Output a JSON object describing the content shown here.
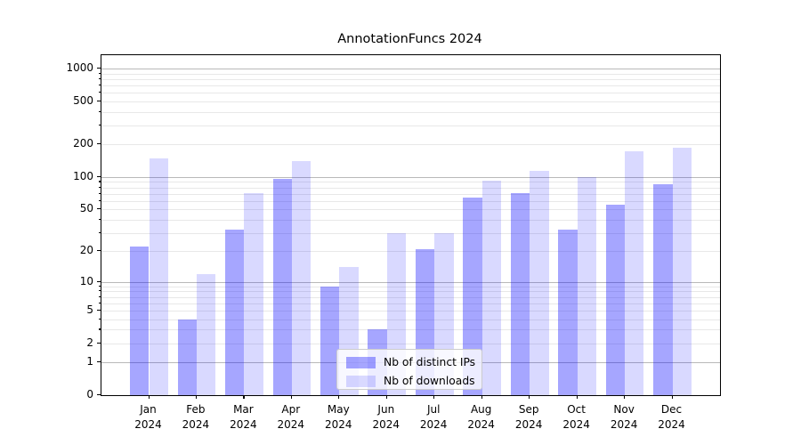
{
  "title": "AnnotationFuncs 2024",
  "chart_data": {
    "type": "bar",
    "title": "AnnotationFuncs 2024",
    "categories": [
      "Jan",
      "Feb",
      "Mar",
      "Apr",
      "May",
      "Jun",
      "Jul",
      "Aug",
      "Sep",
      "Oct",
      "Nov",
      "Dec"
    ],
    "category_year": "2024",
    "series": [
      {
        "name": "Nb of distinct IPs",
        "color": "rgba(0,0,255,0.35)",
        "values": [
          22,
          4,
          32,
          97,
          9,
          3,
          21,
          64,
          71,
          32,
          55,
          85
        ]
      },
      {
        "name": "Nb of downloads",
        "color": "rgba(0,0,255,0.15)",
        "values": [
          148,
          12,
          71,
          140,
          14,
          30,
          30,
          92,
          115,
          100,
          172,
          186
        ]
      }
    ],
    "xlabel": "",
    "ylabel": "",
    "yscale": "log10(1+v)",
    "ylim": [
      0,
      1327
    ],
    "y_ticks": [
      0,
      1,
      2,
      5,
      10,
      20,
      50,
      100,
      200,
      500,
      1000
    ],
    "y_major_gridlines": [
      1,
      10,
      100,
      1000
    ],
    "y_minor_gridlines": [
      2,
      3,
      4,
      5,
      6,
      7,
      8,
      9,
      20,
      30,
      40,
      50,
      60,
      70,
      80,
      90,
      200,
      300,
      400,
      500,
      600,
      700,
      800,
      900
    ],
    "grid": true,
    "legend_position": "lower center"
  },
  "legend": {
    "items": [
      {
        "label": "Nb of distinct IPs"
      },
      {
        "label": "Nb of downloads"
      }
    ]
  }
}
